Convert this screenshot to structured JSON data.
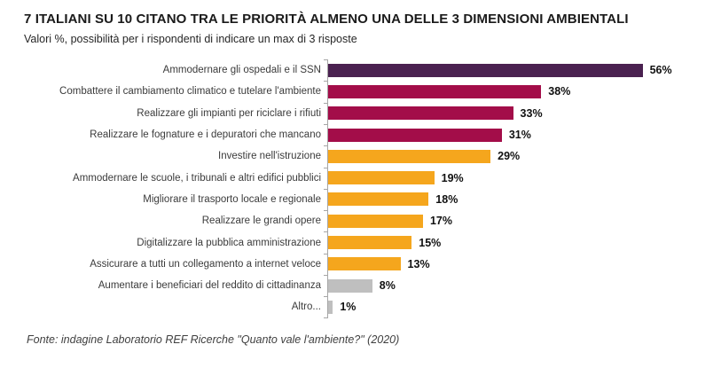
{
  "header": {
    "title": "7 ITALIANI SU 10 CITANO TRA LE PRIORITÀ ALMENO UNA DELLE 3 DIMENSIONI AMBIENTALI",
    "subtitle": "Valori %, possibilità per i rispondenti di indicare un max di 3 risposte"
  },
  "chart_data": {
    "type": "bar",
    "orientation": "horizontal",
    "categories": [
      "Ammodernare gli ospedali e il SSN",
      "Combattere il cambiamento climatico e tutelare l'ambiente",
      "Realizzare gli impianti per riciclare i rifiuti",
      "Realizzare le fognature e i depuratori che mancano",
      "Investire nell'istruzione",
      "Ammodernare le scuole, i tribunali e altri edifici pubblici",
      "Migliorare il trasporto locale e regionale",
      "Realizzare le grandi opere",
      "Digitalizzare la pubblica amministrazione",
      "Assicurare a tutti un collegamento a internet veloce",
      "Aumentare i beneficiari del reddito di cittadinanza",
      "Altro..."
    ],
    "values": [
      56,
      38,
      33,
      31,
      29,
      19,
      18,
      17,
      15,
      13,
      8,
      1
    ],
    "value_labels": [
      "56%",
      "38%",
      "33%",
      "31%",
      "29%",
      "19%",
      "18%",
      "17%",
      "15%",
      "13%",
      "8%",
      "1%"
    ],
    "bar_colors": [
      "#4A2150",
      "#A30D49",
      "#A30D49",
      "#A30D49",
      "#F5A61D",
      "#F5A61D",
      "#F5A61D",
      "#F5A61D",
      "#F5A61D",
      "#F5A61D",
      "#BFBFBF",
      "#BFBFBF"
    ],
    "palette": {
      "purple": "#4A2150",
      "crimson": "#A30D49",
      "orange": "#F5A61D",
      "gray": "#BFBFBF",
      "axis": "#A6A6A6"
    },
    "xlim": [
      0,
      60
    ],
    "grid": false,
    "legend": "none",
    "data_labels": "outside-end"
  },
  "footer": {
    "source": "Fonte: indagine Laboratorio REF Ricerche \"Quanto vale l'ambiente?\" (2020)"
  }
}
